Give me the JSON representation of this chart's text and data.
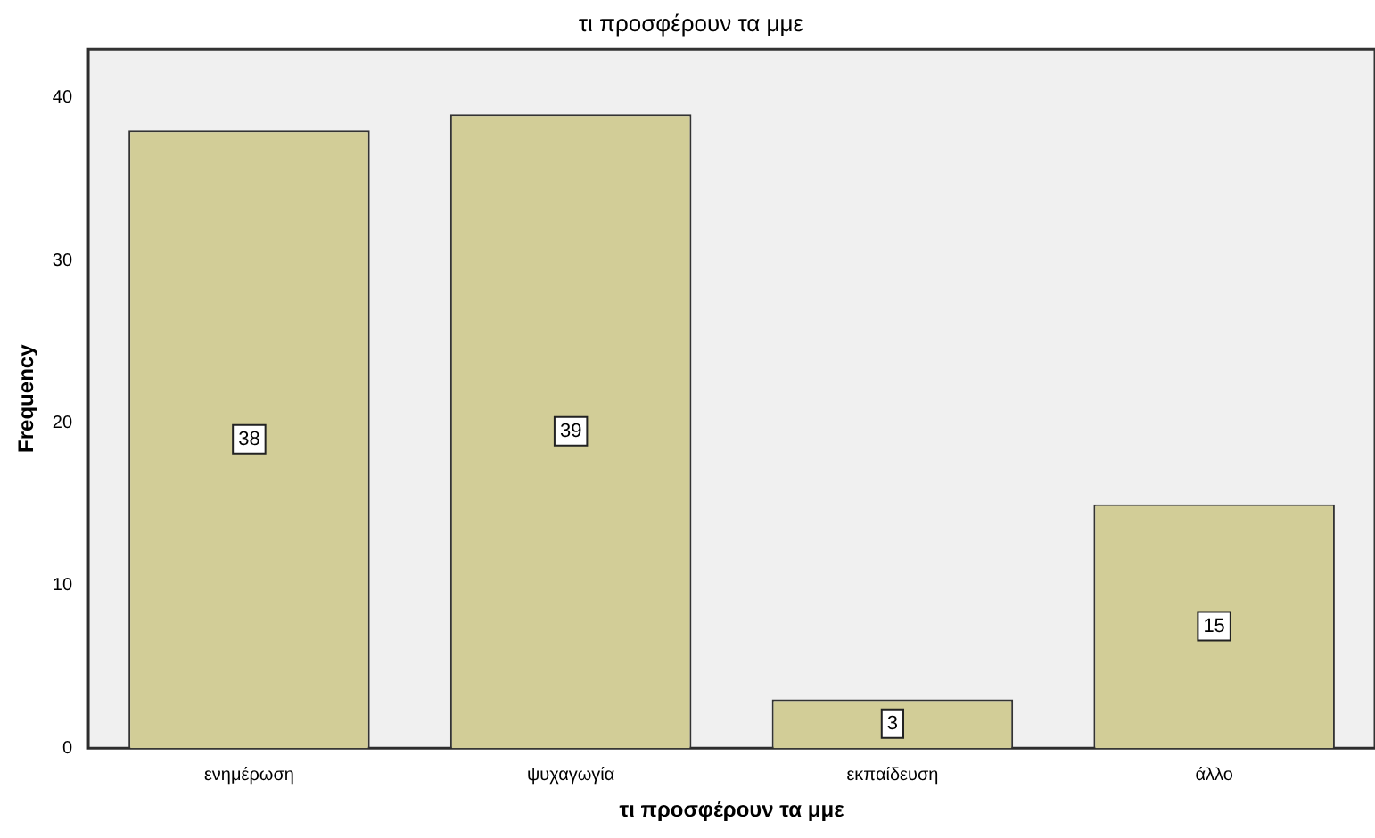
{
  "chart_data": {
    "type": "bar",
    "title": "τι προσφέρουν τα μμε",
    "xlabel": "τι προσφέρουν τα μμε",
    "ylabel": "Frequency",
    "categories": [
      "ενημέρωση",
      "ψυχαγωγία",
      "εκπαίδευση",
      "άλλο"
    ],
    "values": [
      38,
      39,
      3,
      15
    ],
    "color": "#d2cd97",
    "ylim": [
      0,
      43
    ],
    "yticks": [
      0,
      10,
      20,
      30,
      40
    ],
    "grid": false,
    "legend": false,
    "data_labels": true
  }
}
